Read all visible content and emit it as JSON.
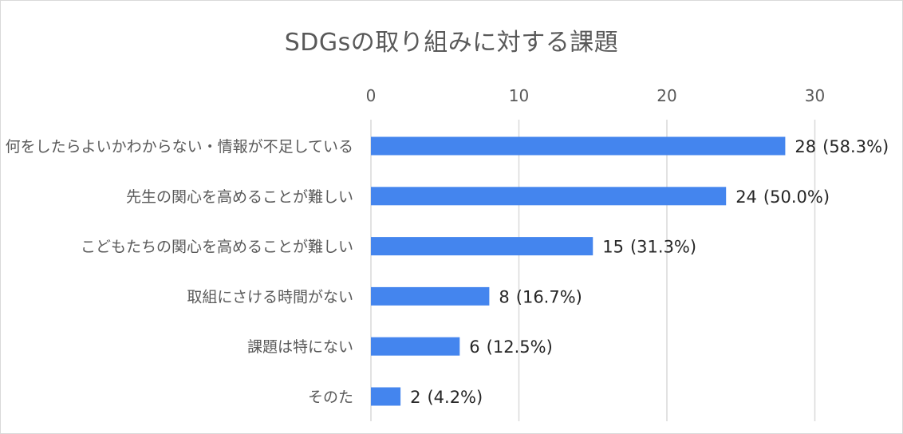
{
  "chart_data": {
    "type": "bar",
    "orientation": "horizontal",
    "title": "SDGsの取り組みに対する課題",
    "categories": [
      "何をしたらよいかわからない・情報が不足している",
      "先生の関心を高めることが難しい",
      "こどもたちの関心を高めることが難しい",
      "取組にさける時間がない",
      "課題は特にない",
      "そのた"
    ],
    "values": [
      28,
      24,
      15,
      8,
      6,
      2
    ],
    "percent_labels": [
      "(58.3%)",
      "(50.0%)",
      "(31.3%)",
      "(16.7%)",
      "(12.5%)",
      "(4.2%)"
    ],
    "x_ticks": [
      "0",
      "10",
      "20",
      "30"
    ],
    "xlim": [
      0,
      35
    ],
    "axis_position": "top",
    "grid": true,
    "bar_color": "#4485EE"
  }
}
